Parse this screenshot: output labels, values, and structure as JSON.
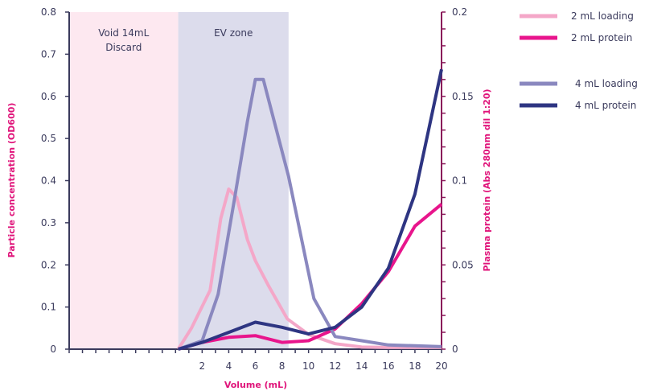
{
  "chart_data": {
    "type": "line",
    "xlabel": "Volume (mL)",
    "ylabel_left": "Particle concentration (OD600)",
    "ylabel_right": "Plasma protein (Abs 280nm dil 1:20)",
    "xlim": [
      -8,
      20
    ],
    "ylim_left": [
      0,
      0.8
    ],
    "ylim_right": [
      0,
      0.2
    ],
    "x_ticks": [
      2,
      4,
      6,
      8,
      10,
      12,
      14,
      16,
      18,
      20
    ],
    "y_left_ticks": [
      "0",
      "0.1",
      "0.2",
      "0.3",
      "0.4",
      "0.5",
      "0.6",
      "0.7",
      "0.8"
    ],
    "y_right_ticks": [
      "0",
      "0.05",
      "0.1",
      "0.15",
      "0.2"
    ],
    "regions": [
      {
        "label_lines": [
          "Void 14mL",
          "Discard"
        ],
        "x_start": -8,
        "x_end": 0.2,
        "color": "#fde8f0"
      },
      {
        "label_lines": [
          "EV zone"
        ],
        "x_start": 0.2,
        "x_end": 8.5,
        "color": "#dcdcec"
      }
    ],
    "series": [
      {
        "name": "2 mL loading",
        "axis": "left",
        "color": "#f4a7c8",
        "x": [
          0.2,
          1.2,
          2.6,
          3.4,
          4.0,
          4.6,
          5.4,
          6.0,
          7.0,
          8.4,
          10.0,
          12.0,
          14.0,
          16.0,
          18.0,
          20.0
        ],
        "y": [
          0.0,
          0.05,
          0.14,
          0.31,
          0.38,
          0.36,
          0.26,
          0.21,
          0.15,
          0.072,
          0.035,
          0.013,
          0.005,
          0.004,
          0.004,
          0.004
        ]
      },
      {
        "name": "2 mL protein",
        "axis": "right",
        "color": "#e8158c",
        "x": [
          0.2,
          2.0,
          4.0,
          6.0,
          8.0,
          10.0,
          12.0,
          14.0,
          16.0,
          18.0,
          20.0
        ],
        "y": [
          0.0,
          0.004,
          0.007,
          0.008,
          0.004,
          0.005,
          0.012,
          0.027,
          0.046,
          0.073,
          0.086
        ]
      },
      {
        "name": "4 mL loading",
        "axis": "left",
        "color": "#8a88bf",
        "x": [
          0.2,
          2.0,
          3.2,
          4.4,
          5.4,
          6.0,
          6.6,
          8.5,
          10.4,
          12.0,
          14.0,
          16.0,
          18.0,
          20.0
        ],
        "y": [
          0.0,
          0.02,
          0.13,
          0.35,
          0.54,
          0.64,
          0.64,
          0.41,
          0.12,
          0.03,
          0.02,
          0.01,
          0.008,
          0.006
        ]
      },
      {
        "name": "4 mL protein",
        "axis": "right",
        "color": "#2e3582",
        "x": [
          0.2,
          2.0,
          4.0,
          6.0,
          8.0,
          10.0,
          12.0,
          14.0,
          16.0,
          18.0,
          20.0
        ],
        "y": [
          0.0,
          0.004,
          0.01,
          0.016,
          0.013,
          0.009,
          0.013,
          0.025,
          0.048,
          0.092,
          0.166
        ]
      }
    ],
    "legend": {
      "placement": "top-right",
      "groups": [
        [
          "2 mL loading",
          "2 mL protein"
        ],
        [
          "4 mL loading",
          "4 mL protein"
        ]
      ]
    },
    "grid": false
  },
  "colors": {
    "axis_left": "#3a3a5c",
    "axis_right": "#8a1a5a",
    "title_accent": "#e0147a"
  }
}
